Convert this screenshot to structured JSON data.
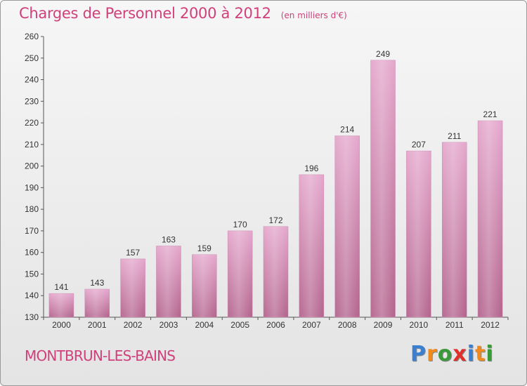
{
  "title": "Charges de Personnel 2000 à 2012",
  "subtitle": "(en milliers d'€)",
  "commune": "MONTBRUN-LES-BAINS",
  "logo": {
    "letters": [
      "P",
      "r",
      "o",
      "x",
      "i",
      "t",
      "i"
    ],
    "colors": [
      "#3a7fd0",
      "#f08a1c",
      "#3a9a3a",
      "#e0302a",
      "#3a7fd0",
      "#f08a1c",
      "#3a9a3a"
    ]
  },
  "colors": {
    "accent": "#d0407a",
    "bar_top": "#e4a6cc",
    "bar_bottom": "#b5658e"
  },
  "chart_data": {
    "type": "bar",
    "categories": [
      "2000",
      "2001",
      "2002",
      "2003",
      "2004",
      "2005",
      "2006",
      "2007",
      "2008",
      "2009",
      "2010",
      "2011",
      "2012"
    ],
    "values": [
      141,
      143,
      157,
      163,
      159,
      170,
      172,
      196,
      214,
      249,
      207,
      211,
      221
    ],
    "ylim": [
      130,
      260
    ],
    "yticks": [
      130,
      140,
      150,
      160,
      170,
      180,
      190,
      200,
      210,
      220,
      230,
      240,
      250,
      260
    ],
    "grid": false
  }
}
